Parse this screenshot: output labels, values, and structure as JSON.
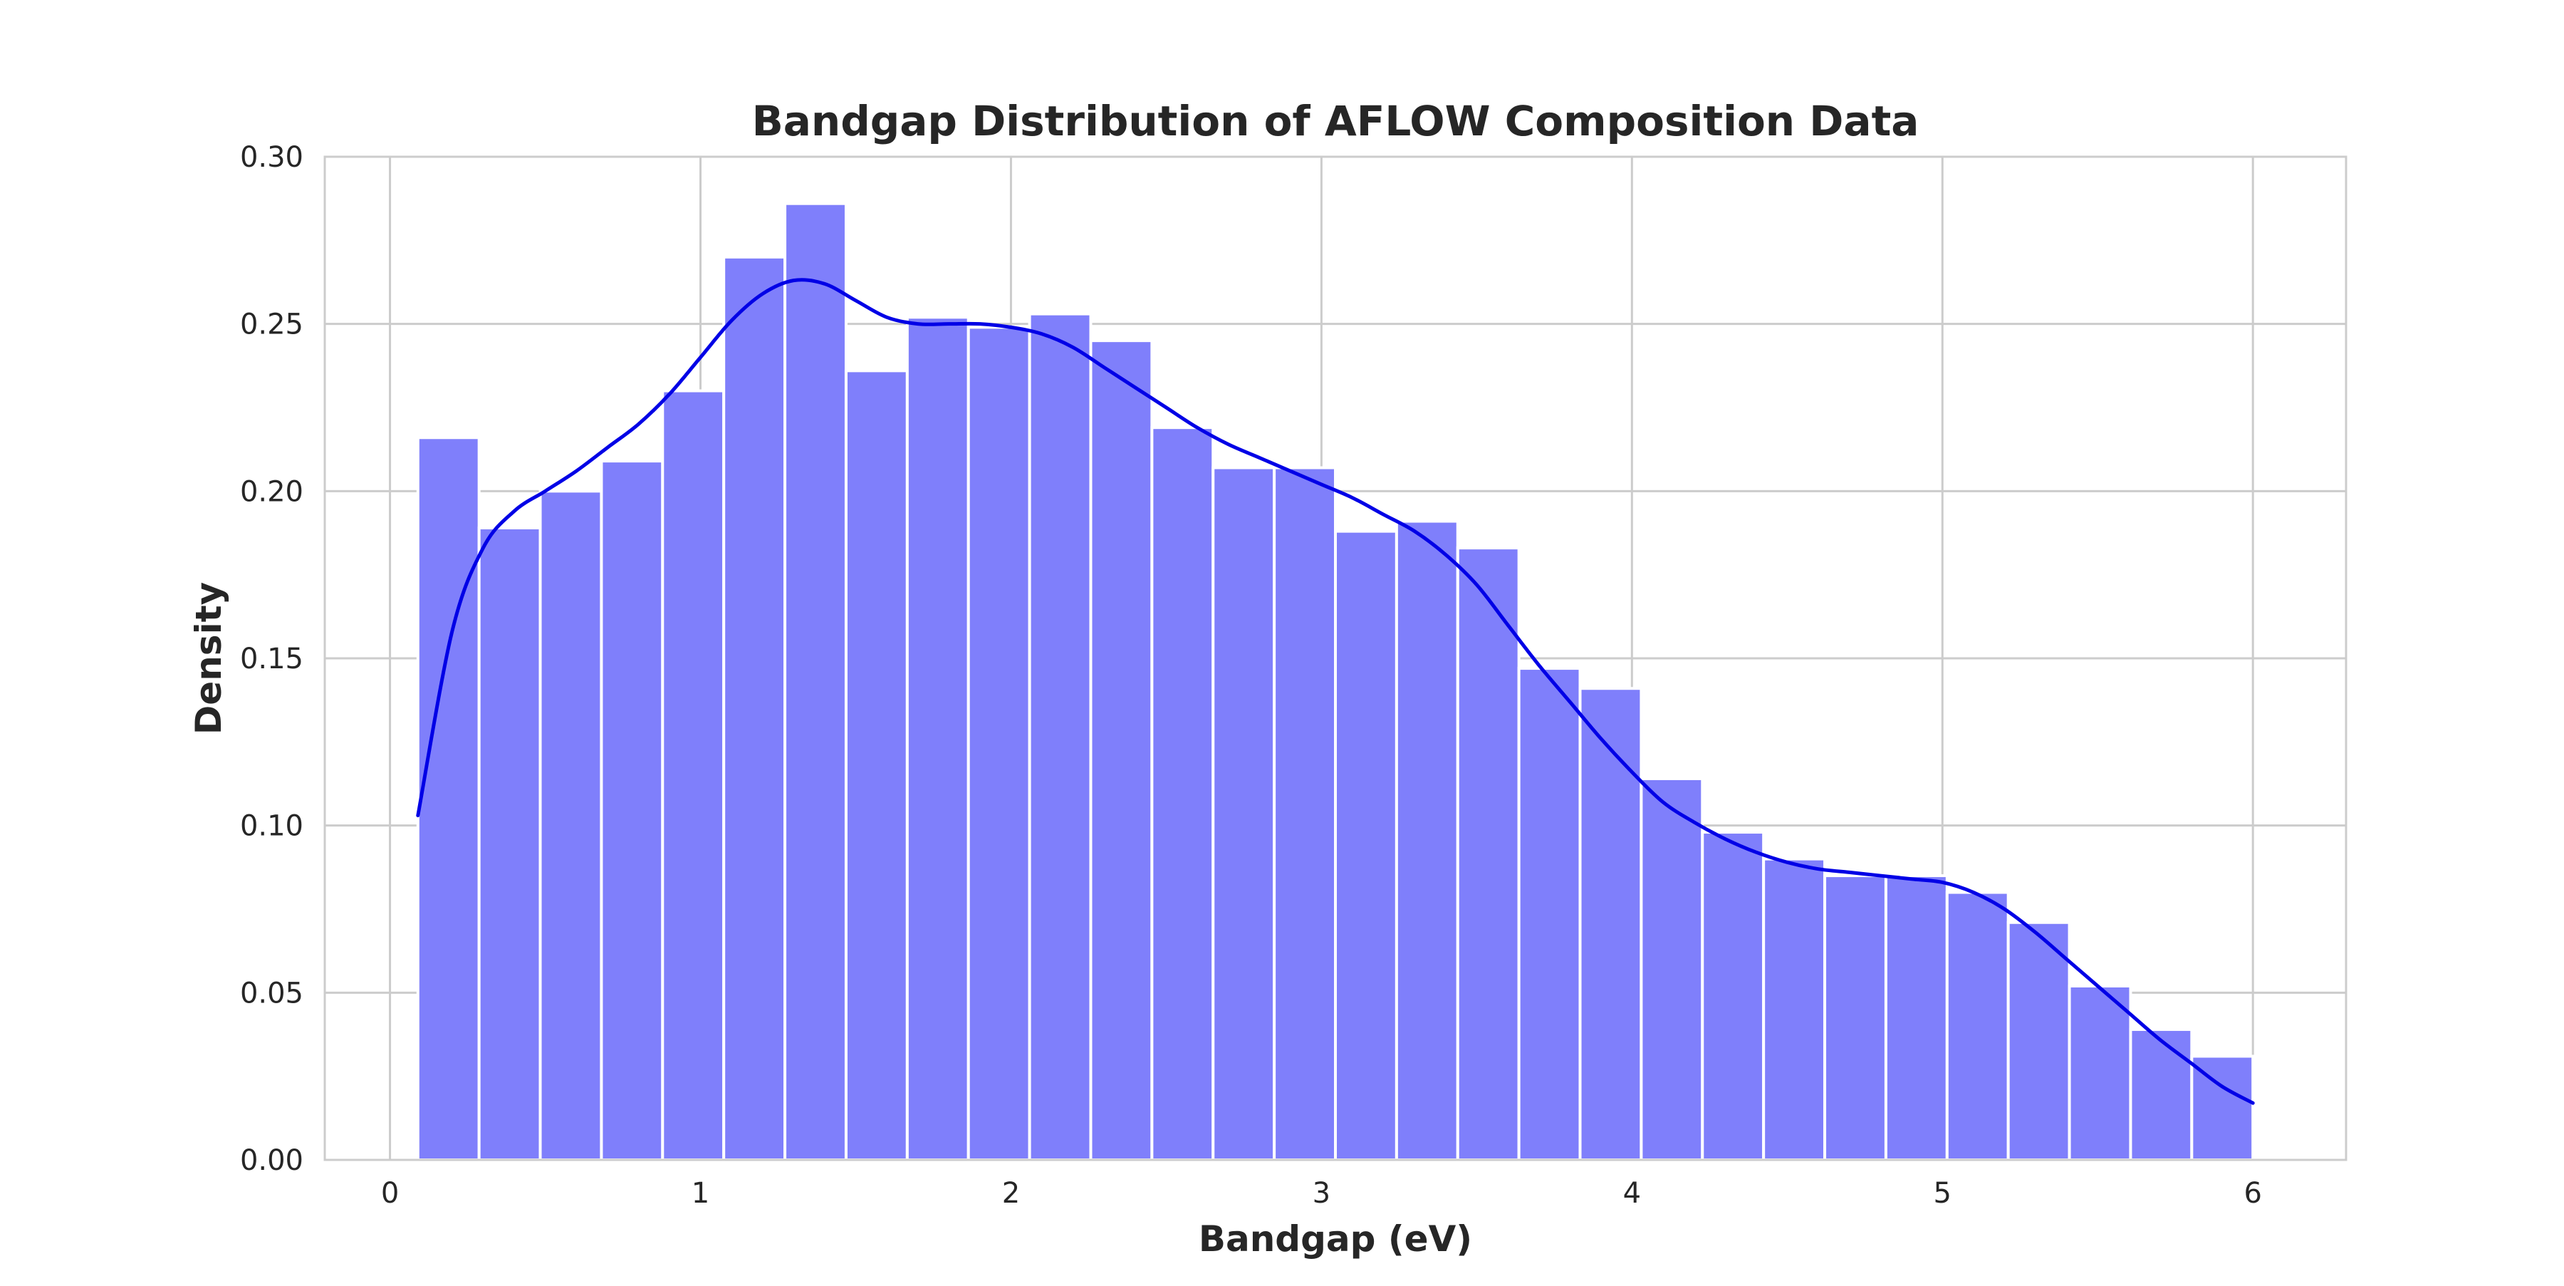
{
  "chart_data": {
    "type": "bar",
    "title": "Bandgap Distribution of AFLOW Composition Data",
    "xlabel": "Bandgap (eV)",
    "ylabel": "Density",
    "xlim": [
      -0.21,
      6.3
    ],
    "ylim": [
      0,
      0.3
    ],
    "xticks": [
      "0",
      "1",
      "2",
      "3",
      "4",
      "5",
      "6"
    ],
    "yticks": [
      "0.00",
      "0.05",
      "0.10",
      "0.15",
      "0.20",
      "0.25",
      "0.30"
    ],
    "grid": true,
    "legend": "none",
    "colors": {
      "bars": "#7f7ffb",
      "kde": "#0000e6",
      "grid": "#cccccc"
    },
    "histogram": {
      "bin_edges": [
        0.09,
        0.287,
        0.484,
        0.681,
        0.878,
        1.075,
        1.272,
        1.469,
        1.666,
        1.863,
        2.06,
        2.257,
        2.454,
        2.651,
        2.848,
        3.045,
        3.242,
        3.439,
        3.636,
        3.833,
        4.03,
        4.227,
        4.424,
        4.621,
        4.818,
        5.015,
        5.212,
        5.409,
        5.606,
        5.803,
        6.0
      ],
      "density": [
        0.216,
        0.189,
        0.2,
        0.209,
        0.23,
        0.27,
        0.286,
        0.236,
        0.252,
        0.249,
        0.253,
        0.245,
        0.219,
        0.207,
        0.207,
        0.188,
        0.191,
        0.183,
        0.147,
        0.141,
        0.114,
        0.098,
        0.09,
        0.085,
        0.085,
        0.08,
        0.071,
        0.052,
        0.039,
        0.031
      ]
    },
    "kde": {
      "x": [
        0.09,
        0.2,
        0.3,
        0.4,
        0.5,
        0.6,
        0.7,
        0.8,
        0.9,
        1.0,
        1.1,
        1.2,
        1.3,
        1.4,
        1.5,
        1.6,
        1.7,
        1.8,
        1.9,
        2.0,
        2.1,
        2.2,
        2.3,
        2.4,
        2.5,
        2.6,
        2.7,
        2.8,
        2.9,
        3.0,
        3.1,
        3.2,
        3.3,
        3.4,
        3.5,
        3.6,
        3.7,
        3.8,
        3.9,
        4.0,
        4.1,
        4.2,
        4.3,
        4.4,
        4.5,
        4.6,
        4.7,
        4.8,
        4.9,
        5.0,
        5.1,
        5.2,
        5.3,
        5.4,
        5.5,
        5.6,
        5.7,
        5.8,
        5.9,
        6.0
      ],
      "y": [
        0.103,
        0.158,
        0.183,
        0.194,
        0.2,
        0.206,
        0.213,
        0.22,
        0.229,
        0.24,
        0.251,
        0.259,
        0.263,
        0.262,
        0.257,
        0.252,
        0.25,
        0.25,
        0.25,
        0.249,
        0.247,
        0.243,
        0.237,
        0.231,
        0.225,
        0.219,
        0.214,
        0.21,
        0.206,
        0.202,
        0.198,
        0.193,
        0.188,
        0.181,
        0.172,
        0.16,
        0.148,
        0.137,
        0.126,
        0.116,
        0.107,
        0.101,
        0.096,
        0.092,
        0.089,
        0.087,
        0.086,
        0.085,
        0.084,
        0.083,
        0.08,
        0.075,
        0.068,
        0.06,
        0.052,
        0.044,
        0.036,
        0.029,
        0.022,
        0.017
      ]
    }
  }
}
